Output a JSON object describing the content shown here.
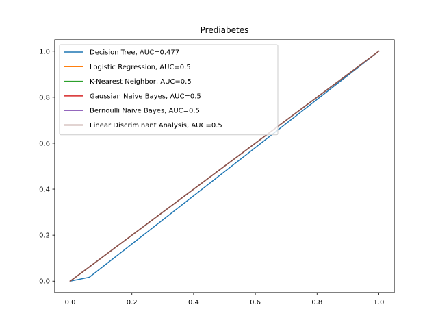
{
  "chart_data": {
    "type": "line",
    "title": "Prediabetes",
    "xlabel": "",
    "ylabel": "",
    "xlim": [
      -0.05,
      1.05
    ],
    "ylim": [
      -0.05,
      1.05
    ],
    "xticks": [
      0.0,
      0.2,
      0.4,
      0.6,
      0.8,
      1.0
    ],
    "yticks": [
      0.0,
      0.2,
      0.4,
      0.6,
      0.8,
      1.0
    ],
    "xtick_labels": [
      "0.0",
      "0.2",
      "0.4",
      "0.6",
      "0.8",
      "1.0"
    ],
    "ytick_labels": [
      "0.0",
      "0.2",
      "0.4",
      "0.6",
      "0.8",
      "1.0"
    ],
    "grid": false,
    "legend_position": "upper-left",
    "series": [
      {
        "name": "Decision Tree, AUC=0.477",
        "color": "#1f77b4",
        "x": [
          0.0,
          0.062,
          1.0
        ],
        "y": [
          0.0,
          0.017,
          1.0
        ]
      },
      {
        "name": "Logistic Regression, AUC=0.5",
        "color": "#ff7f0e",
        "x": [
          0.0,
          1.0
        ],
        "y": [
          0.0,
          1.0
        ]
      },
      {
        "name": "K-Nearest Neighbor, AUC=0.5",
        "color": "#2ca02c",
        "x": [
          0.0,
          1.0
        ],
        "y": [
          0.0,
          1.0
        ]
      },
      {
        "name": "Gaussian Naive Bayes, AUC=0.5",
        "color": "#d62728",
        "x": [
          0.0,
          1.0
        ],
        "y": [
          0.0,
          1.0
        ]
      },
      {
        "name": "Bernoulli Naive Bayes, AUC=0.5",
        "color": "#9467bd",
        "x": [
          0.0,
          1.0
        ],
        "y": [
          0.0,
          1.0
        ]
      },
      {
        "name": "Linear Discriminant Analysis, AUC=0.5",
        "color": "#8c564b",
        "x": [
          0.0,
          1.0
        ],
        "y": [
          0.0,
          1.0
        ]
      }
    ]
  }
}
